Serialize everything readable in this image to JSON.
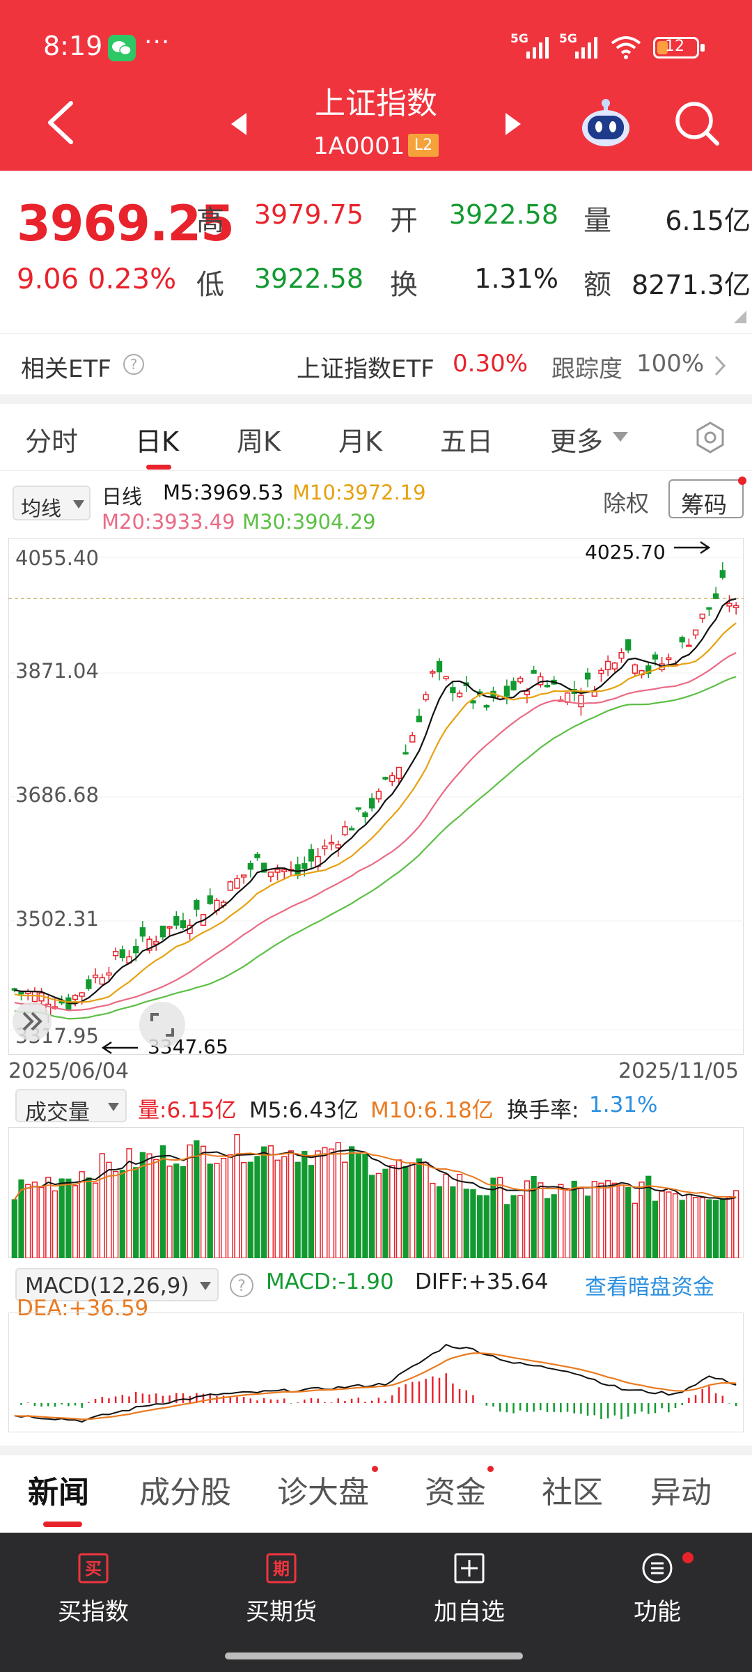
{
  "status_bar": {
    "time": "8:19",
    "more": "···",
    "net1": "5G",
    "net2": "5G",
    "battery": "12"
  },
  "header": {
    "title": "上证指数",
    "code": "1A0001",
    "level_badge": "L2"
  },
  "quote": {
    "price": "3969.25",
    "change": "9.06",
    "change_pct": "0.23%",
    "high_label": "高",
    "high": "3979.75",
    "low_label": "低",
    "low": "3922.58",
    "open_label": "开",
    "open": "3922.58",
    "turnover_label": "换",
    "turnover": "1.31%",
    "volume_label": "量",
    "volume": "6.15亿",
    "amount_label": "额",
    "amount": "8271.3亿"
  },
  "etf": {
    "label": "相关ETF",
    "name": "上证指数ETF",
    "change": "0.30%",
    "track_label": "跟踪度",
    "track_value": "100%"
  },
  "period_tabs": [
    "分时",
    "日K",
    "周K",
    "月K",
    "五日",
    "更多"
  ],
  "active_period": 1,
  "kline": {
    "ma_selector": "均线",
    "line_type": "日线",
    "ma5": "M5:3969.53",
    "ma10": "M10:3972.19",
    "ma20": "M20:3933.49",
    "ma30": "M30:3904.29",
    "btn_exright": "除权",
    "btn_chips": "筹码",
    "y_labels": [
      "4055.40",
      "3871.04",
      "3686.68",
      "3502.31",
      "3317.95"
    ],
    "max_marker": "4025.70",
    "min_marker": "3347.65",
    "start_date": "2025/06/04",
    "end_date": "2025/11/05"
  },
  "volume_panel": {
    "selector": "成交量",
    "vol": "量:6.15亿",
    "m5": "M5:6.43亿",
    "m10": "M10:6.18亿",
    "turnover_label": "换手率:",
    "turnover_value": "1.31%"
  },
  "macd_panel": {
    "selector": "MACD(12,26,9)",
    "macd": "MACD:-1.90",
    "diff": "DIFF:+35.64",
    "dea": "DEA:+36.59",
    "link": "查看暗盘资金"
  },
  "news_tabs": [
    "新闻",
    "成分股",
    "诊大盘",
    "资金",
    "社区",
    "异动"
  ],
  "bottom_bar": [
    {
      "label": "买指数",
      "icon_char": "买"
    },
    {
      "label": "买期货",
      "icon_char": "期"
    },
    {
      "label": "加自选",
      "icon_char": "+"
    },
    {
      "label": "功能",
      "icon_char": "☰"
    }
  ],
  "colors": {
    "header_red": "#f0343e",
    "up_red": "#e8232c",
    "down_green": "#129a31",
    "ma5": "#111111",
    "ma10": "#e6a10f",
    "ma20": "#ea6a84",
    "ma30": "#5cbf45",
    "link_blue": "#2a8fe0"
  }
}
